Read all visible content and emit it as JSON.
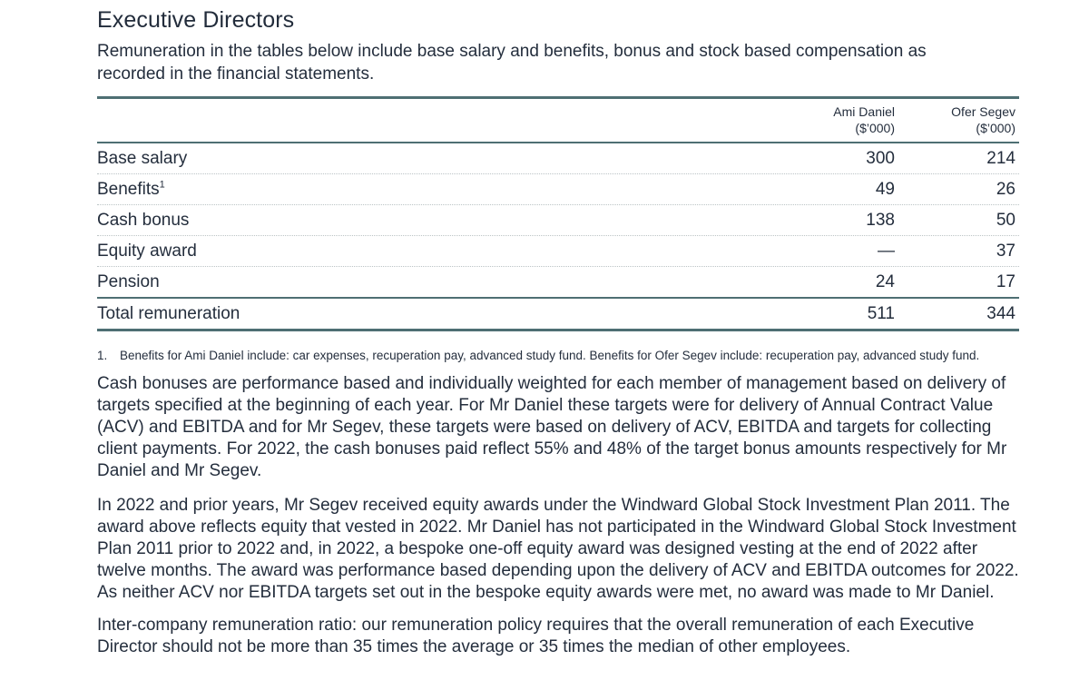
{
  "title": "Executive Directors",
  "intro": "Remuneration in the tables below include base salary and benefits, bonus and stock based compensation as recorded in the financial statements.",
  "table": {
    "columns": [
      {
        "name": "Ami Daniel",
        "unit": "($’000)"
      },
      {
        "name": "Ofer Segev",
        "unit": "($’000)"
      }
    ],
    "rows": [
      {
        "label": "Base salary",
        "ami_daniel": "300",
        "ofer_segev": "214"
      },
      {
        "label": "Benefits",
        "footnote_ref": "1",
        "ami_daniel": "49",
        "ofer_segev": "26"
      },
      {
        "label": "Cash bonus",
        "ami_daniel": "138",
        "ofer_segev": "50"
      },
      {
        "label": "Equity award",
        "ami_daniel": "—",
        "ofer_segev": "37"
      },
      {
        "label": "Pension",
        "ami_daniel": "24",
        "ofer_segev": "17"
      }
    ],
    "total_row": {
      "label": "Total remuneration",
      "ami_daniel": "511",
      "ofer_segev": "344"
    }
  },
  "footnote": {
    "marker": "1.",
    "text": "Benefits for Ami Daniel include: car expenses, recuperation pay, advanced study fund. Benefits for Ofer Segev include: recuperation pay, advanced study fund."
  },
  "paragraphs": [
    "Cash bonuses are performance based and individually weighted for each member of management based on delivery of targets specified at the beginning of each year. For Mr Daniel these targets were for delivery of Annual Contract Value (ACV) and EBITDA and for Mr Segev, these targets were based on delivery of ACV, EBITDA and targets for collecting client payments. For 2022, the cash bonuses paid reflect 55% and 48% of the target bonus amounts respectively for Mr Daniel and Mr Segev.",
    "In 2022 and prior years, Mr Segev received equity awards under the Windward Global Stock Investment Plan 2011. The award above reflects equity that vested in 2022. Mr Daniel has not participated in the Windward Global Stock Investment Plan 2011 prior to 2022 and, in 2022, a bespoke one-off equity award was designed vesting at the end of 2022 after twelve months. The award was performance based depending upon the delivery of ACV and EBITDA outcomes for 2022. As neither ACV nor EBITDA targets set out in the bespoke equity awards were met, no award was made to Mr Daniel.",
    "Inter-company remuneration ratio: our remuneration policy requires that the overall remuneration of each Executive Director should not be more than 35 times the average or 35 times the median of other employees."
  ],
  "colors": {
    "rule_teal": "#4e6f73",
    "row_separator": "#bcc4c6",
    "text": "#242e3d"
  }
}
